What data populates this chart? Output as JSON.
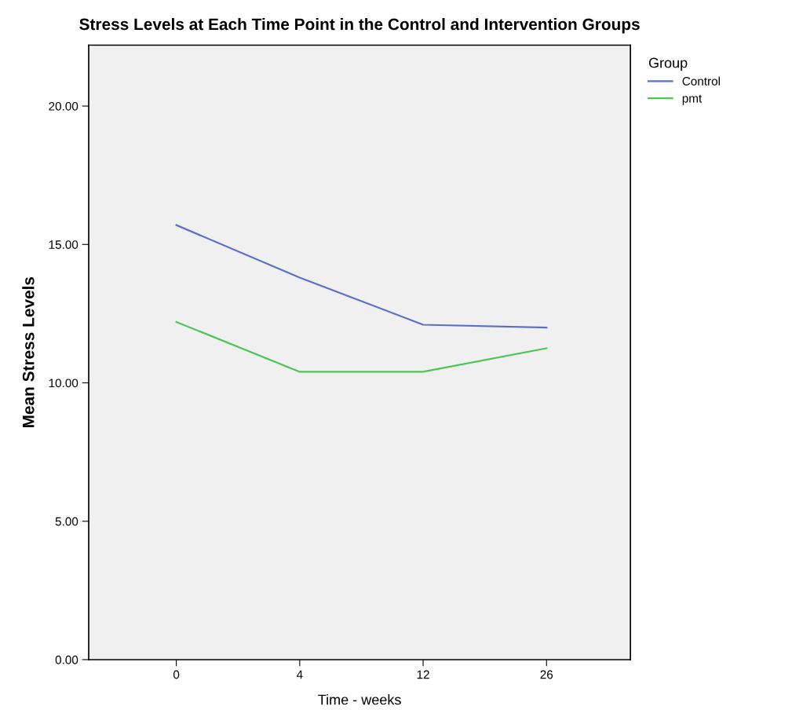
{
  "chart_data": {
    "type": "line",
    "title": "Stress Levels at Each Time Point in the Control and Intervention Groups",
    "xlabel": "Time - weeks",
    "ylabel": "Mean Stress Levels",
    "legend_title": "Group",
    "categories": [
      "0",
      "4",
      "12",
      "26"
    ],
    "series": [
      {
        "name": "Control",
        "color": "#5b6fc9",
        "values": [
          15.7,
          13.8,
          12.1,
          12.0
        ]
      },
      {
        "name": "pmt",
        "color": "#4cc552",
        "values": [
          12.2,
          10.4,
          10.4,
          11.25
        ]
      }
    ],
    "ylim": [
      0,
      22.2
    ],
    "yticks": [
      {
        "value": 0,
        "label": "0.00"
      },
      {
        "value": 5,
        "label": "5.00"
      },
      {
        "value": 10,
        "label": "10.00"
      },
      {
        "value": 15,
        "label": "15.00"
      },
      {
        "value": 20,
        "label": "20.00"
      }
    ],
    "grid": false,
    "legend": "top right",
    "marker": "none",
    "line_style": "solid"
  }
}
